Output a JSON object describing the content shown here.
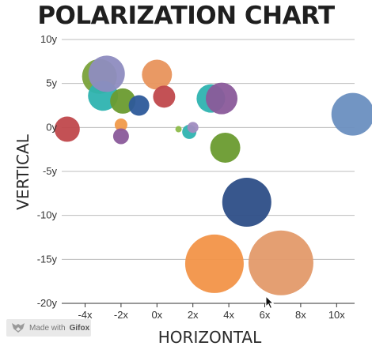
{
  "chart_data": {
    "type": "scatter",
    "title": "POLARIZATION CHART",
    "xlabel": "HORIZONTAL",
    "ylabel": "VERTICAL",
    "xlim": [
      -5.3,
      11
    ],
    "ylim": [
      -20,
      10
    ],
    "x_ticks": [
      -4,
      -2,
      0,
      2,
      4,
      6,
      8,
      10
    ],
    "x_tick_labels": [
      "-4x",
      "-2x",
      "0x",
      "2x",
      "4x",
      "6x",
      "8x",
      "10x"
    ],
    "y_ticks": [
      10,
      5,
      0,
      -5,
      -10,
      -15,
      -20
    ],
    "y_tick_labels": [
      "10y",
      "5y",
      "0y",
      "-5y",
      "-10y",
      "-15y",
      "-20y"
    ],
    "grid": "horizontal",
    "legend": "none",
    "points": [
      {
        "x": -5.0,
        "y": -0.2,
        "size": 16,
        "color": "#c0484c"
      },
      {
        "x": -3.2,
        "y": 5.8,
        "size": 22,
        "color": "#7aa23a"
      },
      {
        "x": -3.0,
        "y": 3.6,
        "size": 19,
        "color": "#2eb3b0"
      },
      {
        "x": -2.8,
        "y": 6.1,
        "size": 23,
        "color": "#8e8cc0"
      },
      {
        "x": -1.9,
        "y": 3.0,
        "size": 16,
        "color": "#6a9b2f"
      },
      {
        "x": -1.0,
        "y": 2.5,
        "size": 13,
        "color": "#2d5a9a"
      },
      {
        "x": -2.0,
        "y": 0.3,
        "size": 8,
        "color": "#f09a4a"
      },
      {
        "x": -2.0,
        "y": -1.0,
        "size": 10,
        "color": "#8a5a9a"
      },
      {
        "x": 0.0,
        "y": 6.0,
        "size": 19,
        "color": "#e8945c"
      },
      {
        "x": 0.4,
        "y": 3.5,
        "size": 14,
        "color": "#c0484c"
      },
      {
        "x": 1.2,
        "y": -0.2,
        "size": 4,
        "color": "#8dbb4a"
      },
      {
        "x": 1.8,
        "y": -0.5,
        "size": 9,
        "color": "#2eb3b0"
      },
      {
        "x": 2.0,
        "y": 0.0,
        "size": 7,
        "color": "#a08cc0"
      },
      {
        "x": 3.0,
        "y": 3.3,
        "size": 18,
        "color": "#2eb3b0"
      },
      {
        "x": 3.6,
        "y": 3.3,
        "size": 20,
        "color": "#8a5a9a"
      },
      {
        "x": 3.8,
        "y": -2.3,
        "size": 19,
        "color": "#6a9b2f"
      },
      {
        "x": 5.0,
        "y": -8.5,
        "size": 31,
        "color": "#2d4e87"
      },
      {
        "x": 3.2,
        "y": -15.5,
        "size": 37,
        "color": "#f29448"
      },
      {
        "x": 6.9,
        "y": -15.4,
        "size": 41,
        "color": "#e39a6a"
      },
      {
        "x": 10.9,
        "y": 1.5,
        "size": 27,
        "color": "#6a8fc0"
      }
    ]
  },
  "badge": {
    "text": "Made with",
    "brand": "Gifox"
  }
}
